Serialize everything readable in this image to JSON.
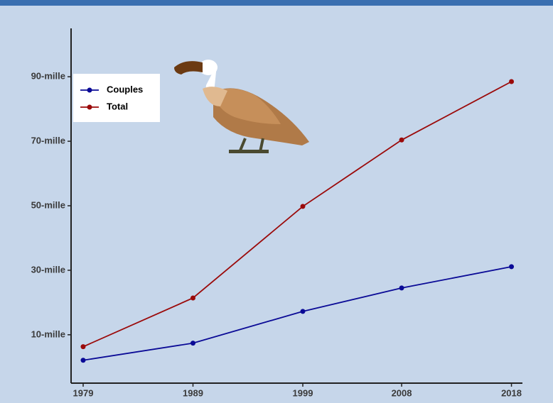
{
  "chart_data": {
    "type": "line",
    "x": [
      1979,
      1989,
      1999,
      2008,
      2018
    ],
    "xlim": [
      1977.9,
      2019
    ],
    "xticks": [
      1979,
      1989,
      1999,
      2008,
      2018
    ],
    "ylim": [
      -5000,
      105000
    ],
    "yticks": [
      {
        "value": 10000,
        "label": "10-mille"
      },
      {
        "value": 30000,
        "label": "30-mille"
      },
      {
        "value": 50000,
        "label": "50-mille"
      },
      {
        "value": 70000,
        "label": "70-mille"
      },
      {
        "value": 90000,
        "label": "90-mille"
      }
    ],
    "legend": "top-left",
    "series": [
      {
        "name": "Couples",
        "color": "#0a0a96",
        "values": [
          2100,
          7400,
          17250,
          24500,
          31100
        ]
      },
      {
        "name": "Total",
        "color": "#9b0a0a",
        "values": [
          6300,
          21400,
          49800,
          70400,
          88500
        ]
      }
    ]
  }
}
